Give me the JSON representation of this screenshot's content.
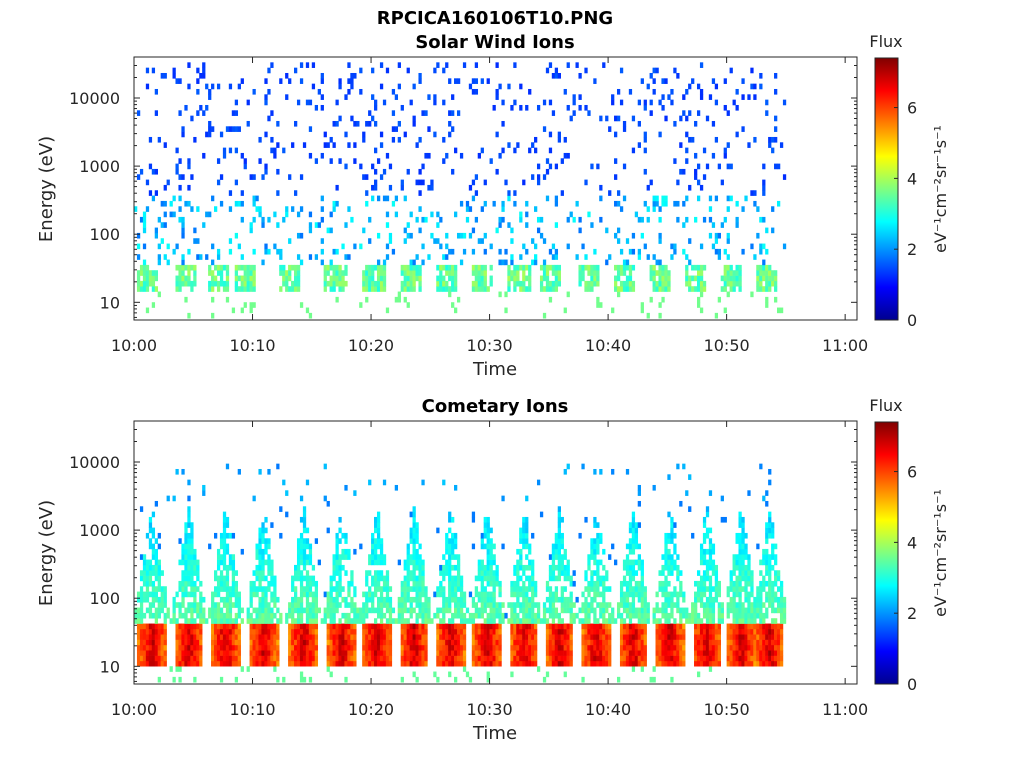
{
  "figure_title": "RPCICA160106T10.PNG",
  "chart_data": [
    {
      "type": "heatmap",
      "title": "Solar Wind Ions",
      "xlabel": "Time",
      "ylabel": "Energy (eV)",
      "x_ticks": [
        "10:00",
        "10:10",
        "10:20",
        "10:30",
        "10:40",
        "10:50",
        "11:00"
      ],
      "x_range": [
        "10:00",
        "11:01"
      ],
      "data_range": [
        "10:00",
        "10:55"
      ],
      "y_scale": "log",
      "y_ticks": [
        10,
        100,
        1000,
        10000
      ],
      "y_tick_labels": [
        "10",
        "100",
        "1000",
        "10000"
      ],
      "y_range": [
        5.5,
        40000
      ],
      "colorbar": {
        "title": "Flux",
        "unit": "eV⁻¹cm⁻²sr⁻¹s⁻¹",
        "range": [
          0,
          7.4
        ],
        "ticks": [
          0,
          2,
          4,
          6
        ],
        "colormap": "jet"
      },
      "sweep_times_min": [
        0.9,
        4.2,
        7.0,
        9.2,
        13.1,
        16.9,
        20.1,
        23.2,
        26.2,
        29.3,
        32.4,
        35.0,
        38.2,
        41.3,
        44.3,
        47.3,
        50.3,
        53.2
      ],
      "features": [
        {
          "band": "core",
          "energy_ev": [
            15,
            40
          ],
          "intensity": 4.0
        },
        {
          "band": "mid",
          "energy_ev": [
            40,
            400
          ],
          "intensity": 2.3
        },
        {
          "band": "background",
          "energy_ev": [
            100,
            40000
          ],
          "intensity": 1.6
        }
      ]
    },
    {
      "type": "heatmap",
      "title": "Cometary Ions",
      "xlabel": "Time",
      "ylabel": "Energy (eV)",
      "x_ticks": [
        "10:00",
        "10:10",
        "10:20",
        "10:30",
        "10:40",
        "10:50",
        "11:00"
      ],
      "x_range": [
        "10:00",
        "11:01"
      ],
      "data_range": [
        "10:00",
        "10:55"
      ],
      "y_scale": "log",
      "y_ticks": [
        10,
        100,
        1000,
        10000
      ],
      "y_tick_labels": [
        "10",
        "100",
        "1000",
        "10000"
      ],
      "y_range": [
        5.5,
        40000
      ],
      "colorbar": {
        "title": "Flux",
        "unit": "eV⁻¹cm⁻²sr⁻¹s⁻¹",
        "range": [
          0,
          7.4
        ],
        "ticks": [
          0,
          2,
          4,
          6
        ],
        "colormap": "jet"
      },
      "sweep_times_min": [
        1.4,
        4.5,
        7.6,
        10.8,
        14.2,
        17.4,
        20.4,
        23.5,
        26.6,
        29.7,
        32.8,
        35.8,
        38.9,
        42.0,
        45.1,
        48.2,
        51.1,
        53.5
      ],
      "features": [
        {
          "band": "core",
          "energy_ev": [
            12,
            45
          ],
          "intensity": 6.0
        },
        {
          "band": "plume",
          "energy_ev": [
            45,
            3000
          ],
          "intensity": 3.2
        },
        {
          "band": "sparse",
          "energy_ev": [
            1000,
            10000
          ],
          "intensity": 1.8
        }
      ]
    }
  ]
}
